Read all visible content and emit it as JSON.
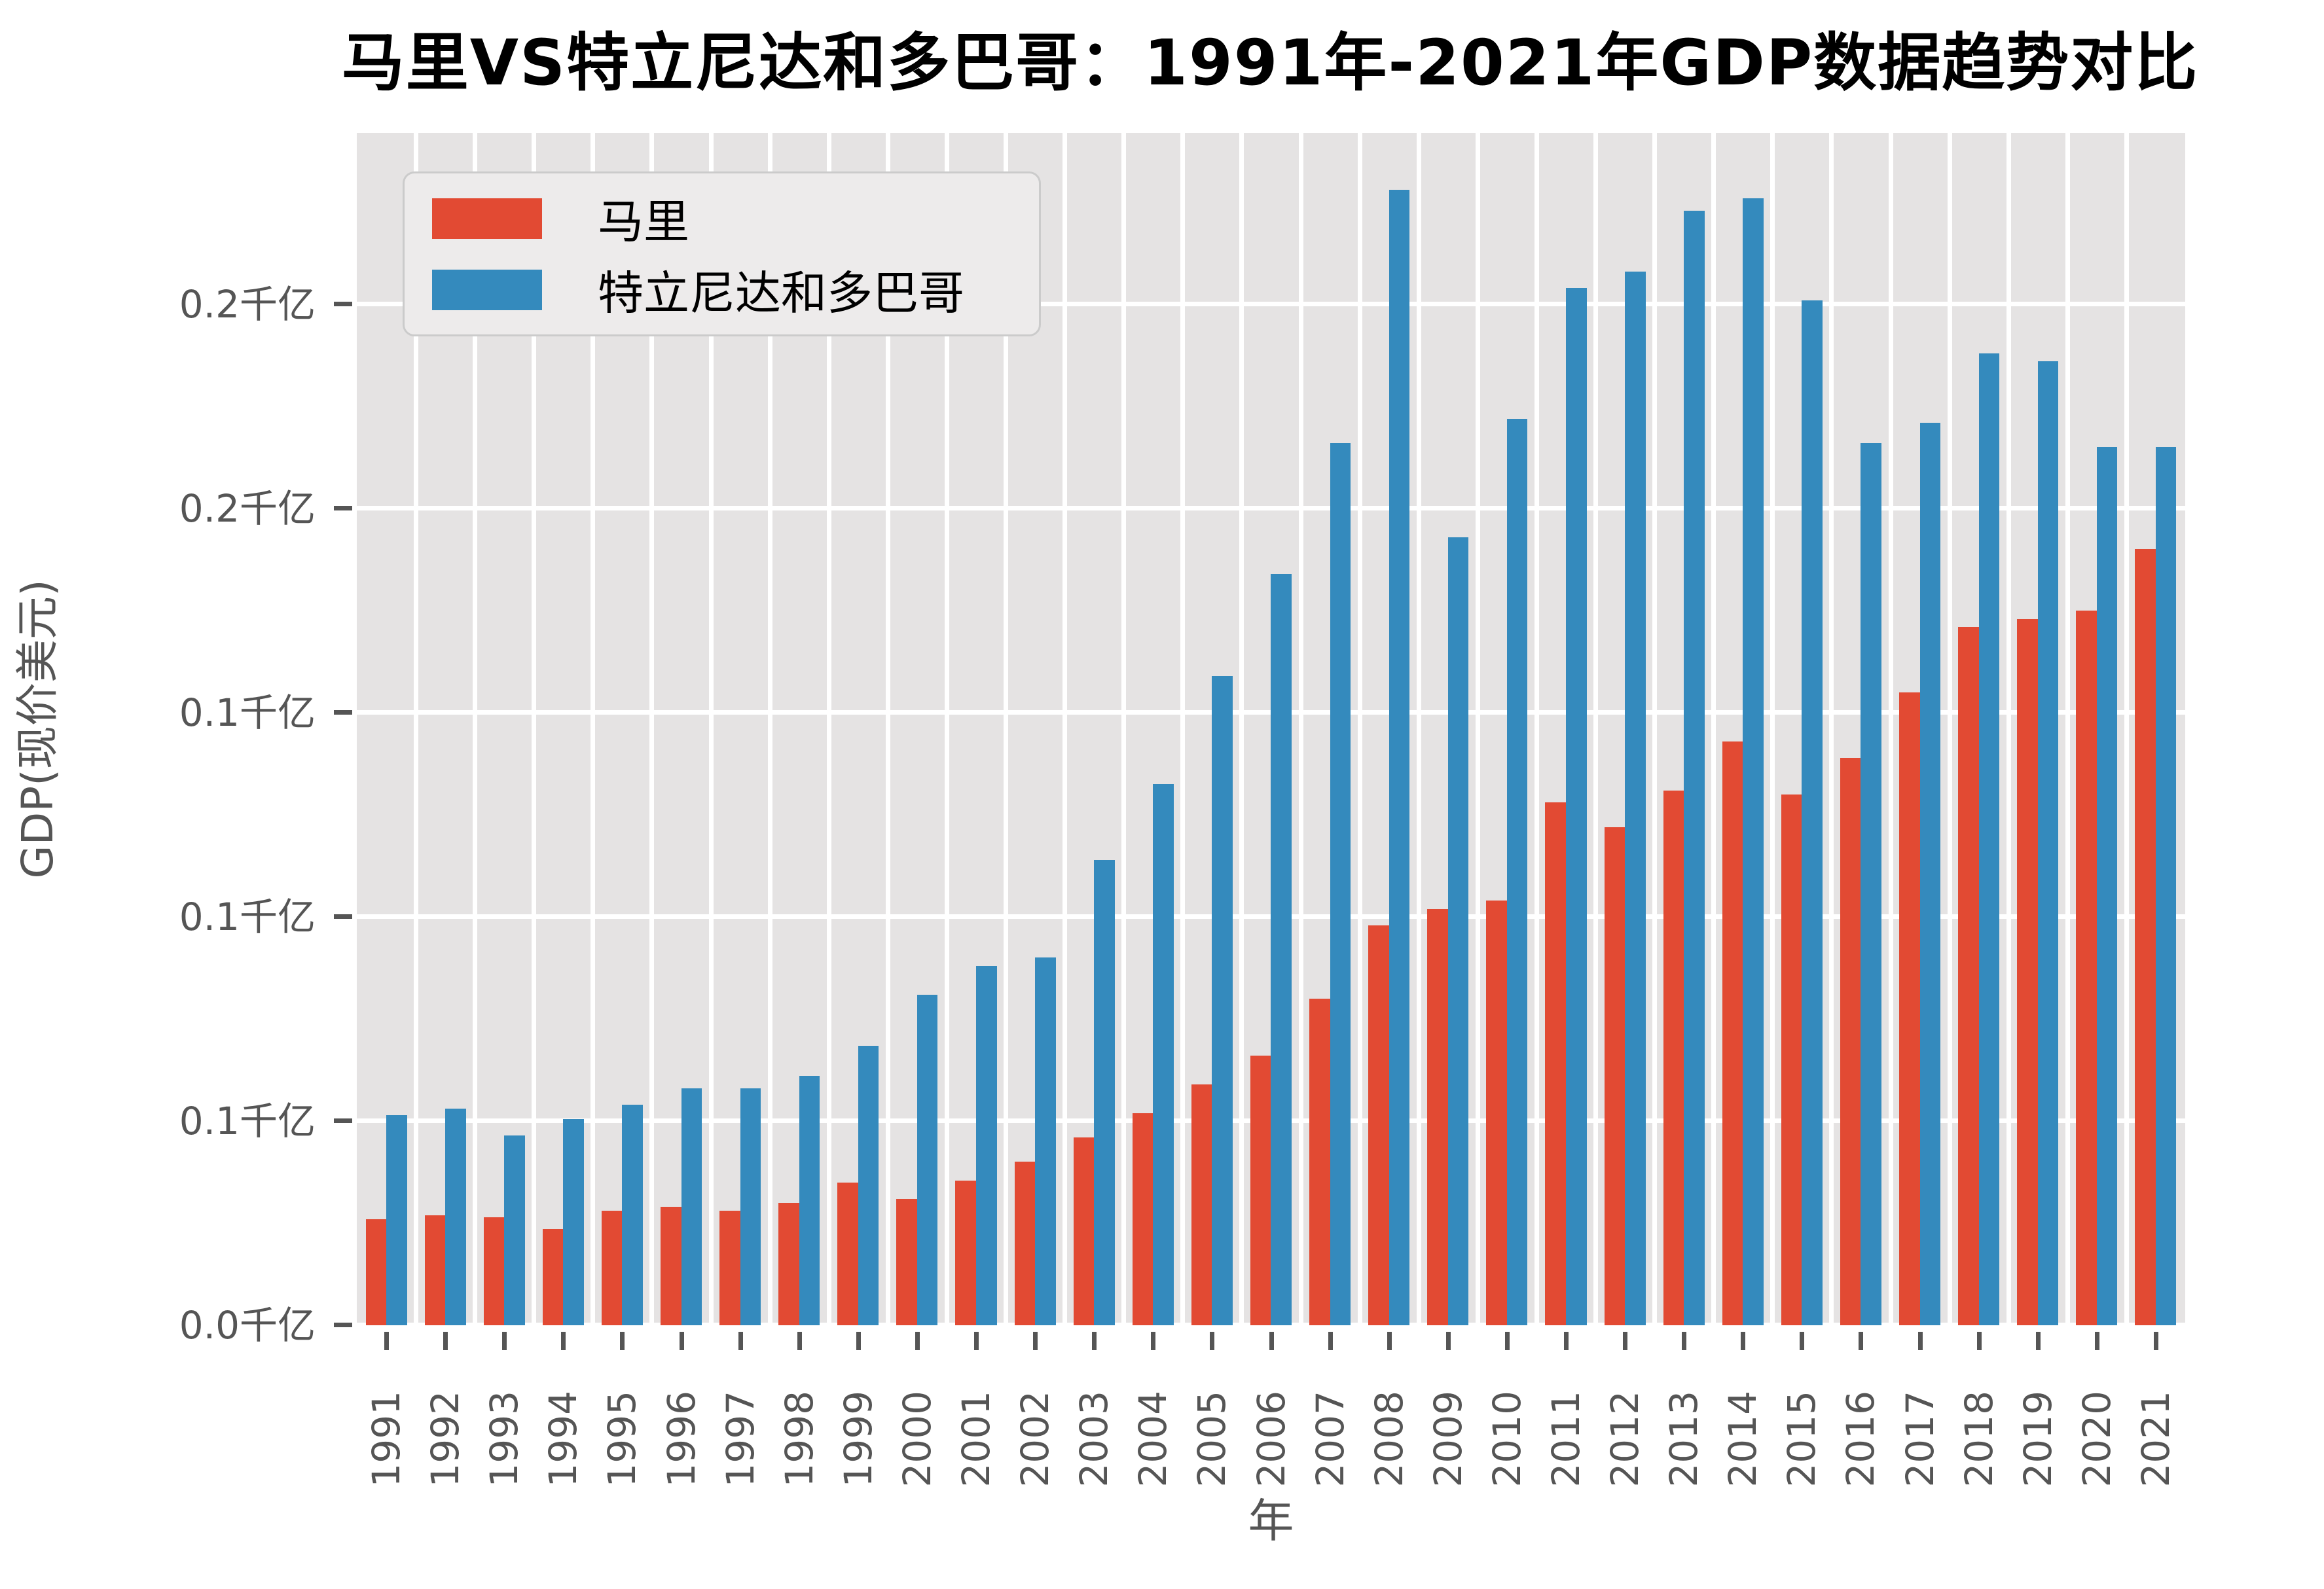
{
  "title": "马里VS特立尼达和多巴哥：1991年-2021年GDP数据趋势对比",
  "chart_data": {
    "type": "bar",
    "title": "马里VS特立尼达和多巴哥：1991年-2021年GDP数据趋势对比",
    "xlabel": "年",
    "ylabel": "GDP(现价美元)",
    "grid": true,
    "legend_position": "upper left",
    "plot_background": "#E5E3E3",
    "gridline_color": "#ffffff",
    "categories": [
      "1991",
      "1992",
      "1993",
      "1994",
      "1995",
      "1996",
      "1997",
      "1998",
      "1999",
      "2000",
      "2001",
      "2002",
      "2003",
      "2004",
      "2005",
      "2006",
      "2007",
      "2008",
      "2009",
      "2010",
      "2011",
      "2012",
      "2013",
      "2014",
      "2015",
      "2016",
      "2017",
      "2018",
      "2019",
      "2020",
      "2021"
    ],
    "series": [
      {
        "name": "马里",
        "color": "#E24A33",
        "unit": "billion USD (current)",
        "values": [
          2.6,
          2.7,
          2.65,
          2.35,
          2.8,
          2.9,
          2.8,
          3.0,
          3.5,
          3.1,
          3.55,
          4.0,
          4.6,
          5.2,
          5.9,
          6.6,
          8.0,
          9.8,
          10.2,
          10.4,
          12.8,
          12.2,
          13.1,
          14.3,
          13.0,
          13.9,
          15.5,
          17.1,
          17.3,
          17.5,
          19.0
        ]
      },
      {
        "name": "特立尼达和多巴哥",
        "color": "#348ABD",
        "unit": "billion USD (current)",
        "values": [
          5.15,
          5.3,
          4.65,
          5.05,
          5.4,
          5.8,
          5.8,
          6.1,
          6.85,
          8.1,
          8.8,
          9.0,
          11.4,
          13.25,
          15.9,
          18.4,
          21.6,
          27.8,
          19.3,
          22.2,
          25.4,
          25.8,
          27.3,
          27.6,
          25.1,
          21.6,
          22.1,
          23.8,
          23.6,
          21.5,
          21.5
        ]
      }
    ],
    "y_axis": {
      "unit_label": "千亿 (= 100 billion USD)",
      "tick_values_billion": [
        0,
        5,
        10,
        15,
        20,
        25
      ],
      "tick_labels": [
        "0.0千亿",
        "0.1千亿",
        "0.1千亿",
        "0.1千亿",
        "0.2千亿",
        "0.2千亿"
      ],
      "ylim_billion": [
        0,
        29.2
      ]
    }
  },
  "legend": {
    "items": [
      {
        "label": "马里",
        "color": "#E24A33"
      },
      {
        "label": "特立尼达和多巴哥",
        "color": "#348ABD"
      }
    ]
  },
  "colors": {
    "mali": "#E24A33",
    "trinidad_tobago": "#348ABD",
    "plot_background": "#E5E3E3",
    "grid": "#ffffff",
    "tick_text": "#555555",
    "title_text": "#000000"
  }
}
